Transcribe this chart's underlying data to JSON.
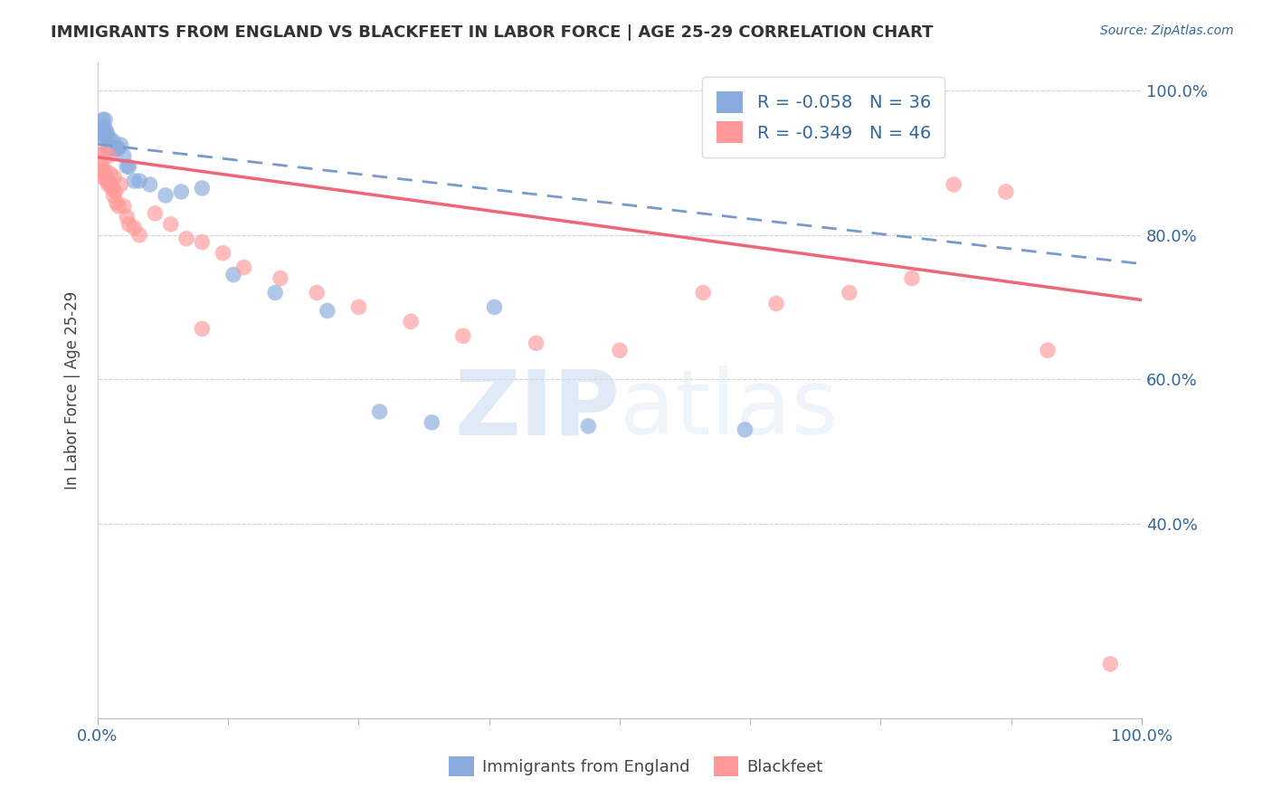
{
  "title": "IMMIGRANTS FROM ENGLAND VS BLACKFEET IN LABOR FORCE | AGE 25-29 CORRELATION CHART",
  "source_text": "Source: ZipAtlas.com",
  "xlabel": "",
  "ylabel": "In Labor Force | Age 25-29",
  "legend1_label": "R = -0.058   N = 36",
  "legend2_label": "R = -0.349   N = 46",
  "legend_series1": "Immigrants from England",
  "legend_series2": "Blackfeet",
  "color_blue": "#88AADD",
  "color_pink": "#FF9999",
  "color_blue_line": "#7799CC",
  "color_pink_line": "#EE6677",
  "R1": -0.058,
  "N1": 36,
  "R2": -0.349,
  "N2": 46,
  "xmin": 0.0,
  "xmax": 1.0,
  "ymin": 0.13,
  "ymax": 1.04,
  "yticks_right": [
    1.0,
    0.8,
    0.6,
    0.4
  ],
  "ytick_labels_right": [
    "100.0%",
    "80.0%",
    "60.0%",
    "40.0%"
  ],
  "blue_x": [
    0.002,
    0.003,
    0.004,
    0.005,
    0.005,
    0.006,
    0.007,
    0.007,
    0.008,
    0.009,
    0.01,
    0.011,
    0.012,
    0.013,
    0.015,
    0.016,
    0.018,
    0.02,
    0.022,
    0.025,
    0.028,
    0.03,
    0.035,
    0.04,
    0.05,
    0.065,
    0.08,
    0.1,
    0.13,
    0.17,
    0.22,
    0.27,
    0.32,
    0.38,
    0.47,
    0.62
  ],
  "blue_y": [
    0.945,
    0.935,
    0.945,
    0.96,
    0.94,
    0.95,
    0.935,
    0.96,
    0.945,
    0.94,
    0.92,
    0.935,
    0.92,
    0.92,
    0.93,
    0.92,
    0.92,
    0.92,
    0.925,
    0.91,
    0.895,
    0.895,
    0.875,
    0.875,
    0.87,
    0.855,
    0.86,
    0.865,
    0.745,
    0.72,
    0.695,
    0.555,
    0.54,
    0.7,
    0.535,
    0.53
  ],
  "pink_x": [
    0.002,
    0.003,
    0.004,
    0.005,
    0.006,
    0.007,
    0.008,
    0.009,
    0.01,
    0.011,
    0.012,
    0.013,
    0.014,
    0.015,
    0.016,
    0.017,
    0.018,
    0.02,
    0.022,
    0.025,
    0.028,
    0.03,
    0.035,
    0.04,
    0.055,
    0.07,
    0.085,
    0.1,
    0.12,
    0.14,
    0.175,
    0.21,
    0.25,
    0.3,
    0.35,
    0.42,
    0.5,
    0.58,
    0.65,
    0.72,
    0.78,
    0.82,
    0.87,
    0.91,
    0.97,
    0.1
  ],
  "pink_y": [
    0.91,
    0.9,
    0.89,
    0.88,
    0.915,
    0.89,
    0.88,
    0.875,
    0.87,
    0.91,
    0.885,
    0.87,
    0.865,
    0.855,
    0.88,
    0.86,
    0.845,
    0.84,
    0.87,
    0.84,
    0.825,
    0.815,
    0.81,
    0.8,
    0.83,
    0.815,
    0.795,
    0.79,
    0.775,
    0.755,
    0.74,
    0.72,
    0.7,
    0.68,
    0.66,
    0.65,
    0.64,
    0.72,
    0.705,
    0.72,
    0.74,
    0.87,
    0.86,
    0.64,
    0.205,
    0.67
  ],
  "watermark_zip": "ZIP",
  "watermark_atlas": "atlas",
  "background_color": "#FFFFFF",
  "grid_color": "#CCCCCC",
  "axis_label_color": "#336699",
  "title_color": "#333333",
  "blue_line_start_y": 0.926,
  "blue_line_end_y": 0.76,
  "pink_line_start_y": 0.908,
  "pink_line_end_y": 0.71
}
